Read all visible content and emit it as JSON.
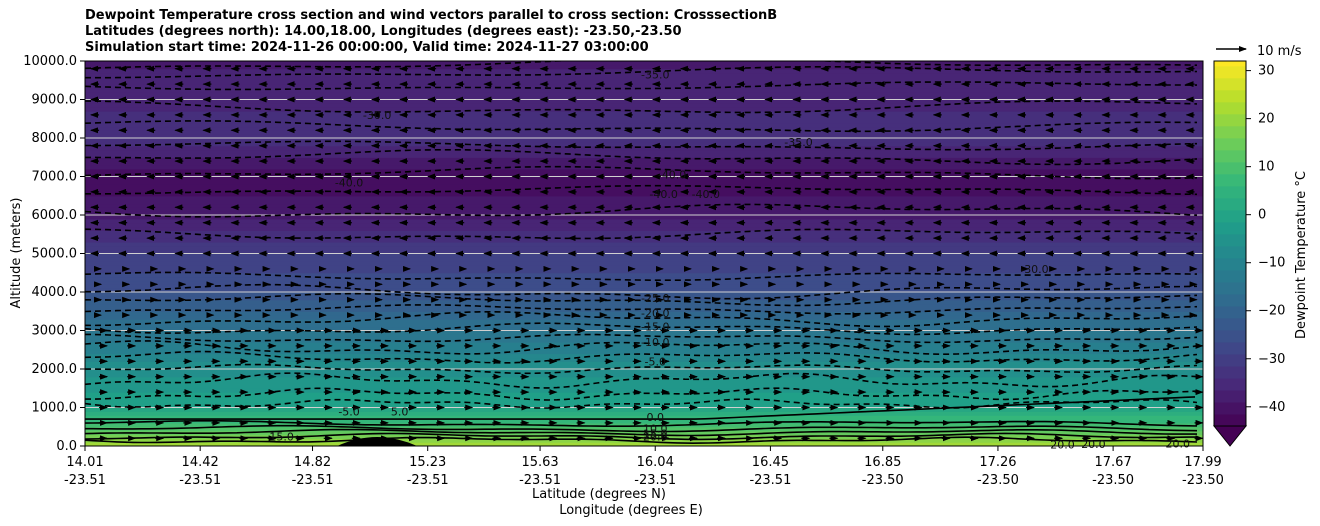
{
  "chart_data": {
    "type": "heatmap",
    "title_lines": [
      "Dewpoint Temperature cross section and wind vectors parallel to cross section: CrosssectionB",
      "Latitudes (degrees north): 14.00,18.00, Longitudes (degrees east): -23.50,-23.50",
      "Simulation start time: 2024-11-26 00:00:00, Valid time: 2024-11-27 03:00:00"
    ],
    "xlabel": "Latitude (degrees N)",
    "xlabel2": "Longitude (degrees E)",
    "ylabel": "Altitude (meters)",
    "ylim": [
      0,
      10000
    ],
    "y_ticks": [
      "0.0",
      "1000.0",
      "2000.0",
      "3000.0",
      "4000.0",
      "5000.0",
      "6000.0",
      "7000.0",
      "8000.0",
      "9000.0",
      "10000.0"
    ],
    "x_lat_range": [
      14.01,
      17.99
    ],
    "x_tick_lat": [
      "14.01",
      "14.42",
      "14.82",
      "15.23",
      "15.63",
      "16.04",
      "16.45",
      "16.85",
      "17.26",
      "17.67",
      "17.99"
    ],
    "x_tick_lon": [
      "-23.51",
      "-23.51",
      "-23.51",
      "-23.51",
      "-23.51",
      "-23.51",
      "-23.51",
      "-23.50",
      "-23.50",
      "-23.50",
      "-23.50"
    ],
    "x_tick_lat_values": [
      14.01,
      14.42,
      14.82,
      15.23,
      15.63,
      16.04,
      16.45,
      16.85,
      17.26,
      17.67,
      17.99
    ],
    "colorbar": {
      "label": "Dewpoint Temperature °C",
      "range": [
        -44,
        32
      ],
      "ticks": [
        "30",
        "20",
        "10",
        "0",
        "−10",
        "−20",
        "−30",
        "−40"
      ],
      "tick_values": [
        30,
        20,
        10,
        0,
        -10,
        -20,
        -30,
        -40
      ],
      "extend": "min"
    },
    "quiver_key_label": "10 m/s",
    "grid": "horizontal",
    "dewpoint_levels": [
      {
        "alt": 0,
        "t": 22
      },
      {
        "alt": 500,
        "t": 10
      },
      {
        "alt": 1000,
        "t": 0
      },
      {
        "alt": 2000,
        "t": -6
      },
      {
        "alt": 3000,
        "t": -15
      },
      {
        "alt": 4000,
        "t": -25
      },
      {
        "alt": 5000,
        "t": -30
      },
      {
        "alt": 6000,
        "t": -38
      },
      {
        "alt": 7000,
        "t": -42
      },
      {
        "alt": 8000,
        "t": -33
      },
      {
        "alt": 9000,
        "t": -36
      },
      {
        "alt": 10000,
        "t": -38
      }
    ],
    "contour_labels": [
      {
        "text": "-35.0",
        "lat": 16.04,
        "alt": 9650
      },
      {
        "text": "-30.0",
        "lat": 15.05,
        "alt": 8600
      },
      {
        "text": "-40.0",
        "lat": 16.1,
        "alt": 7050
      },
      {
        "text": "-40.0",
        "lat": 16.07,
        "alt": 6550
      },
      {
        "text": "-40.0",
        "lat": 16.22,
        "alt": 6550
      },
      {
        "text": "-40.0",
        "lat": 14.95,
        "alt": 6850
      },
      {
        "text": "-35.0",
        "lat": 16.55,
        "alt": 7900
      },
      {
        "text": "-30.0",
        "lat": 17.39,
        "alt": 4600
      },
      {
        "text": "-25.0",
        "lat": 16.04,
        "alt": 3850
      },
      {
        "text": "-20.0",
        "lat": 16.04,
        "alt": 3450
      },
      {
        "text": "-15.0",
        "lat": 16.04,
        "alt": 3100
      },
      {
        "text": "-10.0",
        "lat": 16.04,
        "alt": 2700
      },
      {
        "text": "-5.0",
        "lat": 16.04,
        "alt": 2200
      },
      {
        "text": "-5.0",
        "lat": 14.95,
        "alt": 900
      },
      {
        "text": "5.0",
        "lat": 15.13,
        "alt": 900
      },
      {
        "text": "0.0",
        "lat": 16.04,
        "alt": 750
      },
      {
        "text": "10.0",
        "lat": 16.04,
        "alt": 450
      },
      {
        "text": "15.0",
        "lat": 16.04,
        "alt": 320
      },
      {
        "text": "20.0",
        "lat": 16.04,
        "alt": 250
      },
      {
        "text": "15.0",
        "lat": 14.71,
        "alt": 250
      },
      {
        "text": "20.0",
        "lat": 17.6,
        "alt": 50
      },
      {
        "text": "20.0",
        "lat": 17.9,
        "alt": 60
      },
      {
        "text": "20.0",
        "lat": 17.49,
        "alt": 40
      }
    ]
  }
}
